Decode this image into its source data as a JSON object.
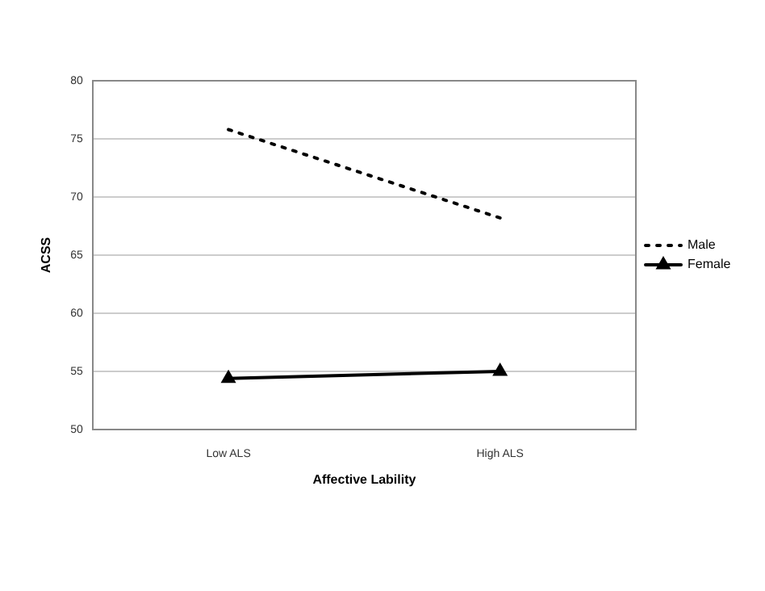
{
  "chart_data": {
    "type": "line",
    "xlabel": "Affective Lability",
    "ylabel": "ACSS",
    "categories": [
      "Low ALS",
      "High ALS"
    ],
    "series": [
      {
        "name": "Male",
        "color": "#000000",
        "values": [
          75.8,
          68.2
        ],
        "line_style": "dotted",
        "marker": "none"
      },
      {
        "name": "Female",
        "color": "#000000",
        "values": [
          54.4,
          55.0
        ],
        "line_style": "solid",
        "marker": "triangle"
      }
    ],
    "ylim": [
      50,
      80
    ],
    "yticks": [
      50,
      55,
      60,
      65,
      70,
      75,
      80
    ],
    "grid": "y",
    "legend": "right"
  }
}
